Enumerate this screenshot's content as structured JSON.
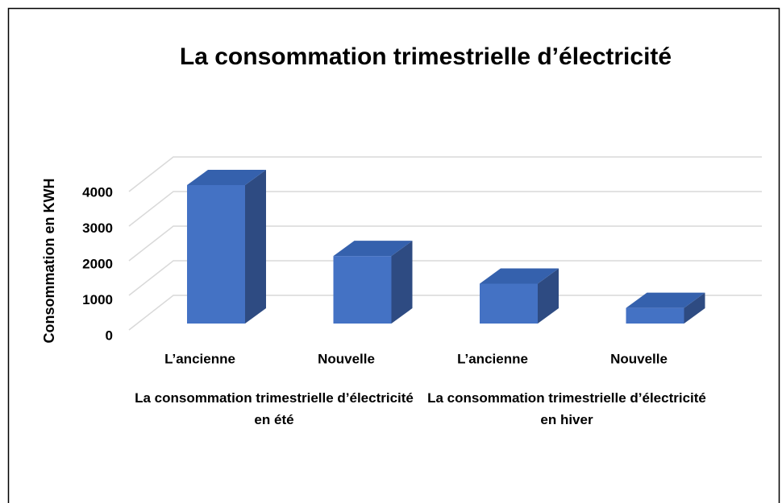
{
  "chart_data": {
    "type": "bar3d",
    "title": "La consommation trimestrielle d’électricité",
    "ylabel": "Consommation en KWH",
    "categories": [
      "L’ancienne",
      "Nouvelle",
      "L’ancienne",
      "Nouvelle"
    ],
    "groups": [
      "La consommation trimestrielle d’électricité en été",
      "La consommation trimestrielle d’électricité en hiver"
    ],
    "values": [
      4000,
      1950,
      1150,
      450
    ],
    "color": "#4472c4",
    "ylim": [
      0,
      4000
    ],
    "yticks": [
      0,
      1000,
      2000,
      3000,
      4000
    ],
    "grid": true
  }
}
